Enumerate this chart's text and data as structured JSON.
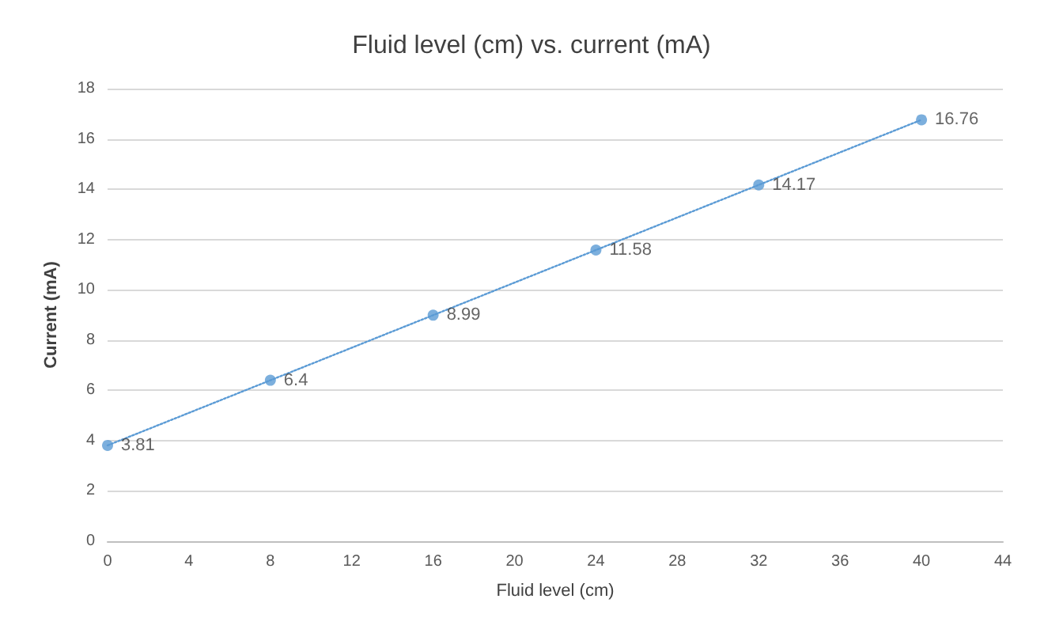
{
  "chart_data": {
    "type": "scatter",
    "title": "Fluid level (cm) vs. current (mA)",
    "xlabel": "Fluid level (cm)",
    "ylabel": "Current (mA)",
    "series": [
      {
        "color": "#5b9bd5",
        "x": [
          0,
          8,
          16,
          24,
          32,
          40
        ],
        "values": [
          3.81,
          6.4,
          8.99,
          11.58,
          14.17,
          16.76
        ],
        "value_labels": [
          "3.81",
          "6.4",
          "8.99",
          "11.58",
          "14.17",
          "16.76"
        ],
        "marker": "circle"
      },
      {
        "type": "line",
        "color": "#5b9bd5",
        "x": [
          0,
          40
        ],
        "values": [
          3.81,
          16.76
        ],
        "line_style": "dotted",
        "marker": "none"
      }
    ],
    "xlim": [
      0,
      44
    ],
    "xticks": [
      0,
      4,
      8,
      12,
      16,
      20,
      24,
      28,
      32,
      36,
      40,
      44
    ],
    "ylim": [
      0,
      18
    ],
    "yticks": [
      0,
      2,
      4,
      6,
      8,
      10,
      12,
      14,
      16,
      18
    ],
    "grid": "y"
  }
}
